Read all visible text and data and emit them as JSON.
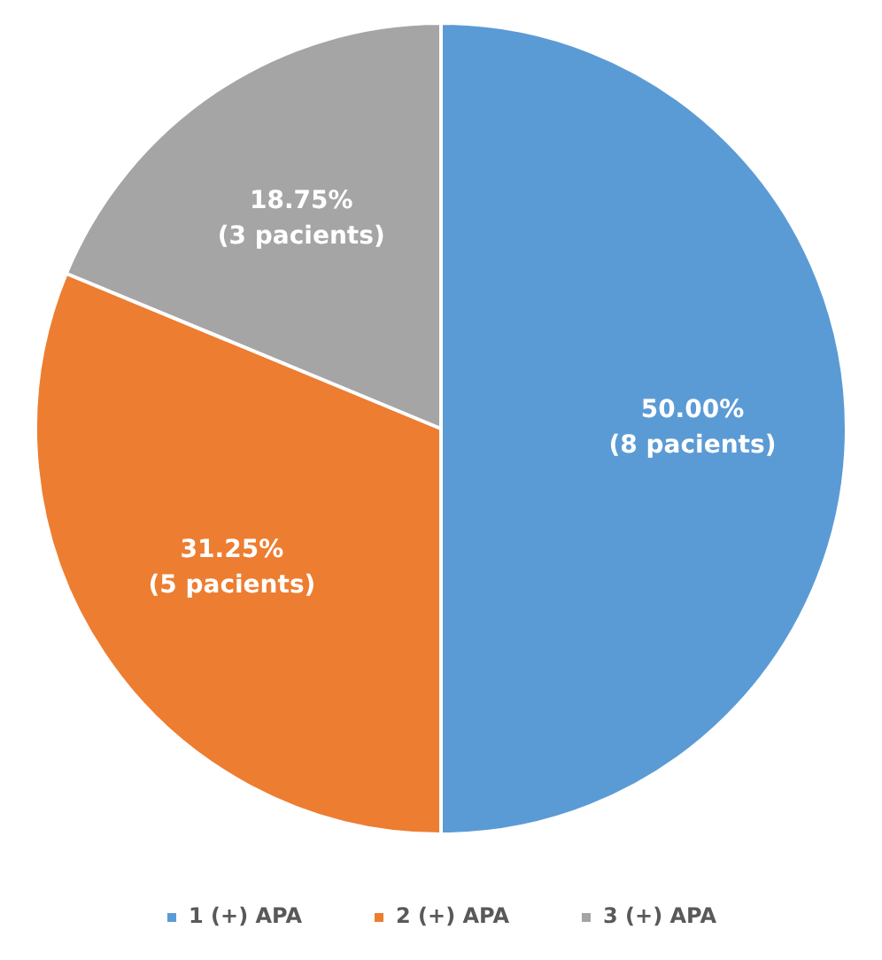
{
  "chart_data": {
    "type": "pie",
    "categories": [
      "1 (+) APA",
      "2 (+) APA",
      "3 (+) APA"
    ],
    "values": [
      8,
      5,
      3
    ],
    "colors": [
      "#5b9bd5",
      "#ed7d31",
      "#a5a5a5"
    ],
    "value_labels": [
      "50.00%\n(8 pacients)",
      "31.25%\n(5 pacients)",
      "18.75%\n(3 pacients)"
    ],
    "legend": "bottom"
  }
}
